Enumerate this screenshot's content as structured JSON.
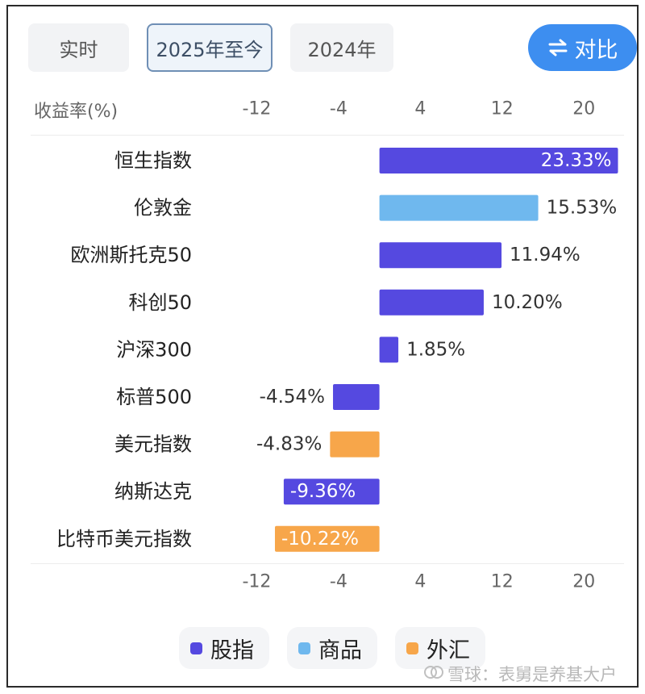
{
  "tabs": [
    {
      "label": "实时",
      "active": false
    },
    {
      "label": "2025年至今",
      "active": true
    },
    {
      "label": "2024年",
      "active": false
    }
  ],
  "compare_button": {
    "label": "对比",
    "icon": "swap-arrows-icon"
  },
  "header_label": "收益率(%)",
  "legend": [
    {
      "label": "股指",
      "color": "#5549e0"
    },
    {
      "label": "商品",
      "color": "#6fb8ee"
    },
    {
      "label": "外汇",
      "color": "#f7a64a"
    }
  ],
  "watermark": {
    "icon": "snowball-logo-icon",
    "text": "雪球：表舅是养基大户"
  },
  "chart_data": {
    "type": "bar",
    "orientation": "horizontal",
    "xlim": [
      -17,
      24
    ],
    "x_ticks": [
      -12,
      -4,
      4,
      12,
      20
    ],
    "categories": [
      "恒生指数",
      "伦敦金",
      "欧洲斯托克50",
      "科创50",
      "沪深300",
      "标普500",
      "美元指数",
      "纳斯达克",
      "比特币美元指数"
    ],
    "values": [
      23.33,
      15.53,
      11.94,
      10.2,
      1.85,
      -4.54,
      -4.83,
      -9.36,
      -10.22
    ],
    "value_labels": [
      "23.33%",
      "15.53%",
      "11.94%",
      "10.20%",
      "1.85%",
      "-4.54%",
      "-4.83%",
      "-9.36%",
      "-10.22%"
    ],
    "groups": [
      "股指",
      "商品",
      "股指",
      "股指",
      "股指",
      "股指",
      "外汇",
      "股指",
      "外汇"
    ],
    "label_inside": [
      true,
      false,
      false,
      false,
      false,
      false,
      false,
      true,
      true
    ],
    "grid": false,
    "legend_position": "bottom"
  }
}
